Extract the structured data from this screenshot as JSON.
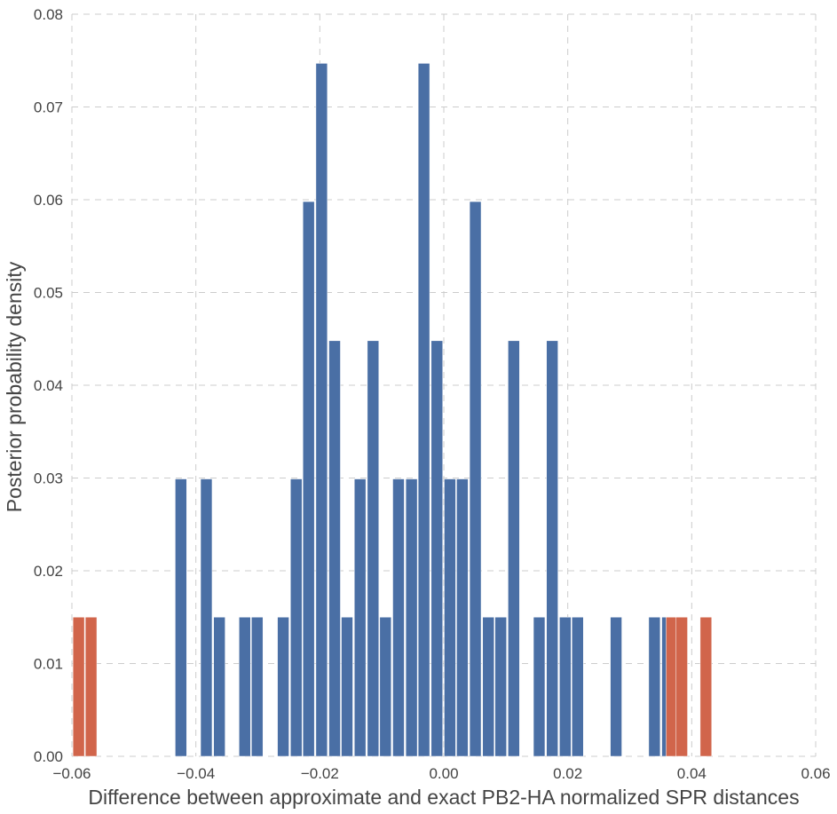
{
  "chart_data": {
    "type": "bar",
    "title": "",
    "xlabel": "Difference between approximate and exact PB2-HA normalized SPR distances",
    "ylabel": "Posterior probability density",
    "xlim": [
      -0.06,
      0.06
    ],
    "ylim": [
      0,
      0.08
    ],
    "grid": true,
    "x_ticks": [
      "−0.06",
      "−0.04",
      "−0.02",
      "0.00",
      "0.02",
      "0.04",
      "0.06"
    ],
    "y_ticks": [
      "0.00",
      "0.01",
      "0.02",
      "0.03",
      "0.04",
      "0.05",
      "0.06",
      "0.07",
      "0.08"
    ],
    "colors": {
      "primary": "#4a6fa5",
      "highlight": "#d1654b"
    },
    "series": [
      {
        "color": "#4a6fa5",
        "x": [
          -0.0423,
          -0.0382,
          -0.0361,
          -0.032,
          -0.03,
          -0.0258,
          -0.0237,
          -0.0217,
          -0.0196,
          -0.0175,
          -0.0155,
          -0.0134,
          -0.0113,
          -0.0093,
          -0.0072,
          -0.0051,
          -0.0031,
          -0.001,
          0.0011,
          0.0031,
          0.0052,
          0.0073,
          0.0093,
          0.0114,
          0.0155,
          0.0176,
          0.0197,
          0.0217,
          0.0279,
          0.0341,
          0.0362
        ],
        "values": [
          0.0299,
          0.0299,
          0.015,
          0.015,
          0.015,
          0.015,
          0.0299,
          0.0598,
          0.0747,
          0.0448,
          0.015,
          0.0299,
          0.0448,
          0.015,
          0.0299,
          0.0299,
          0.0747,
          0.0448,
          0.0299,
          0.0299,
          0.0598,
          0.015,
          0.015,
          0.0448,
          0.015,
          0.0448,
          0.015,
          0.015,
          0.015,
          0.015,
          0.015
        ]
      },
      {
        "color": "#d1654b",
        "x": [
          -0.0588,
          -0.0568,
          0.0369,
          0.0385,
          0.0424
        ],
        "values": [
          0.015,
          0.015,
          0.015,
          0.015,
          0.015
        ]
      }
    ]
  }
}
